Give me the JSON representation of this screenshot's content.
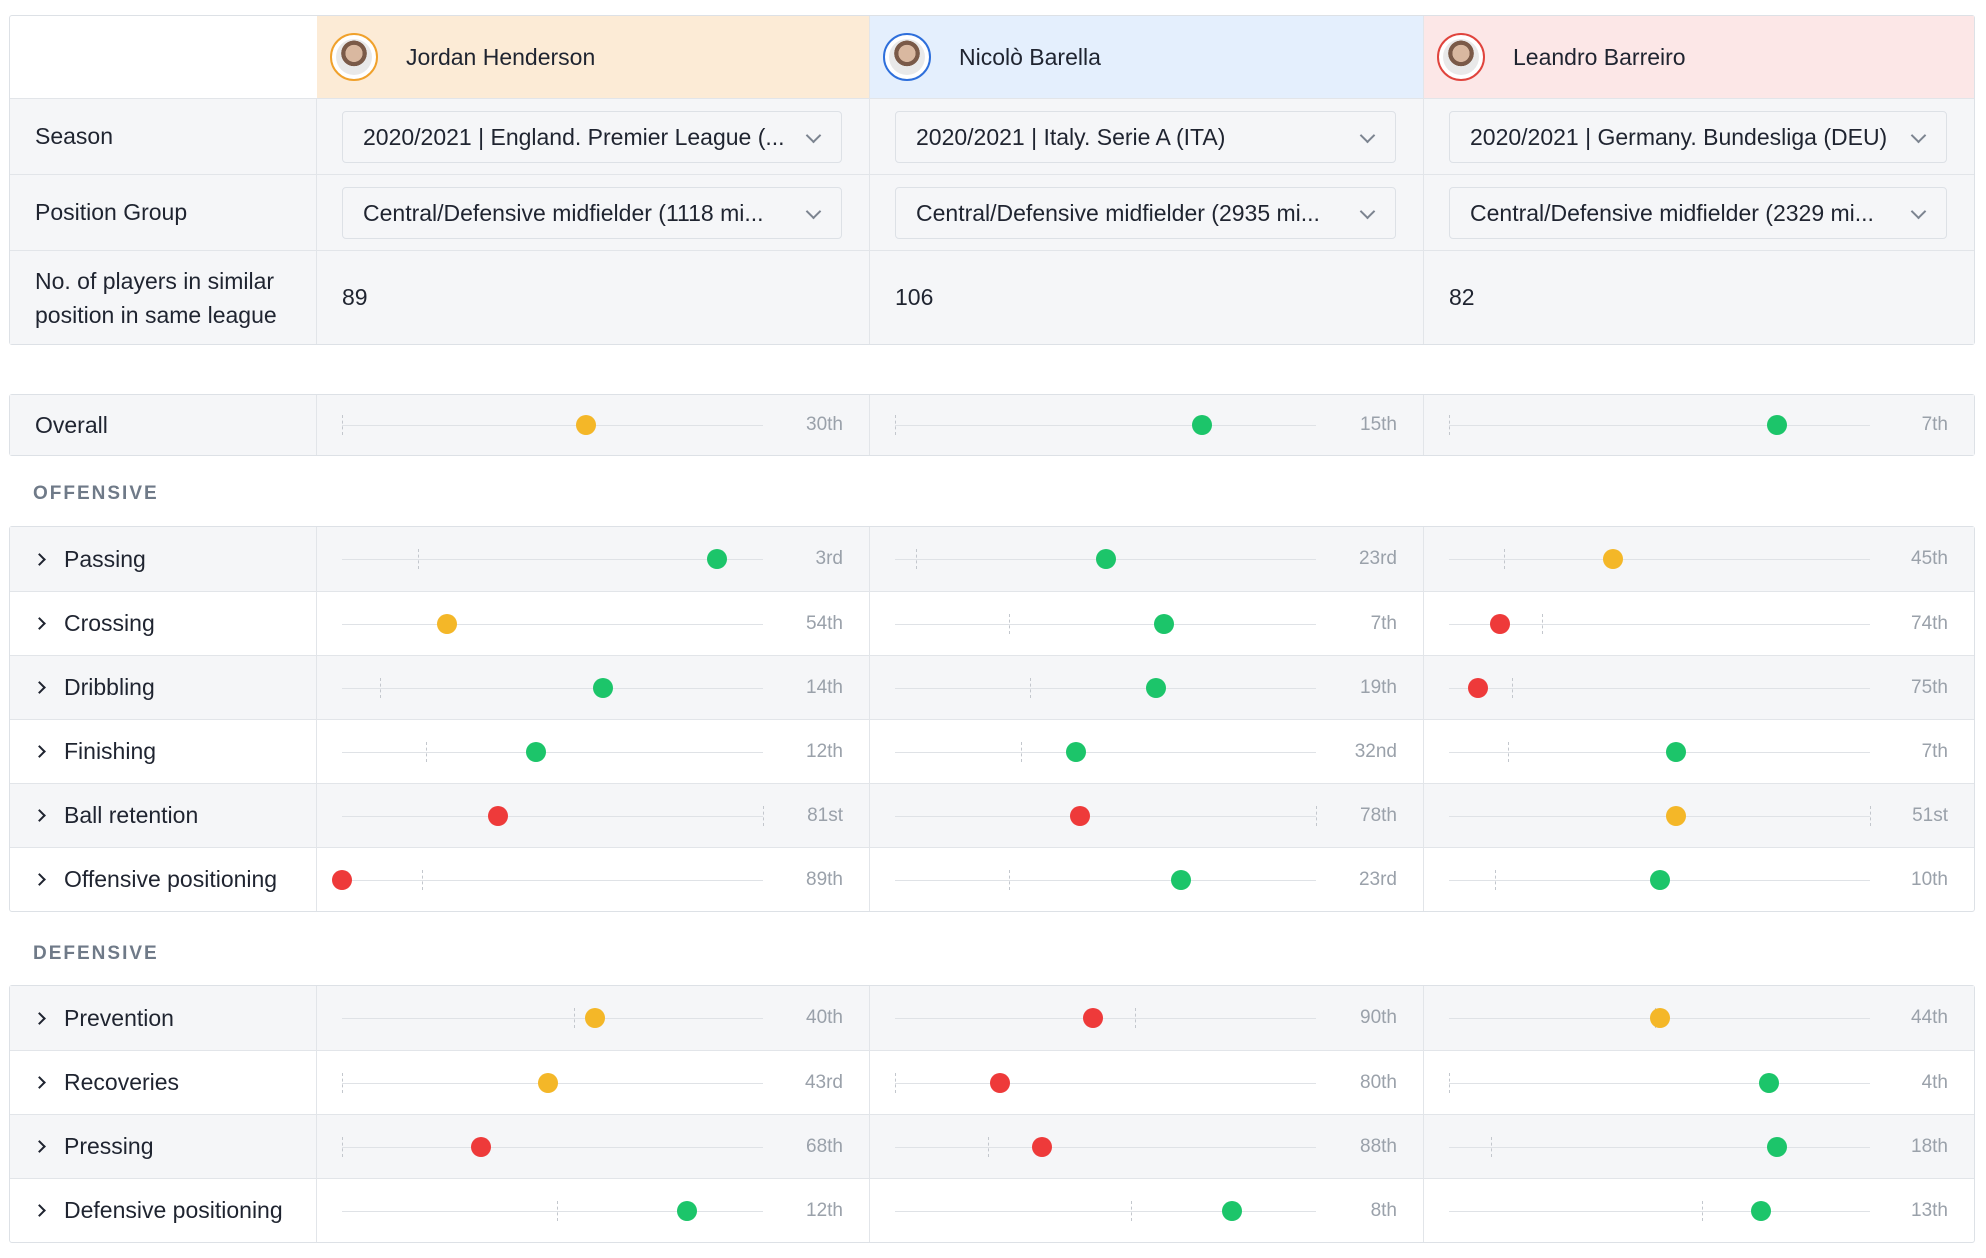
{
  "players": [
    {
      "name": "Jordan Henderson",
      "season": "2020/2021 | England. Premier League (...",
      "position_group": "Central/Defensive midfielder (1118 mi...",
      "similar_players": "89"
    },
    {
      "name": "Nicolò Barella",
      "season": "2020/2021 | Italy. Serie A (ITA)",
      "position_group": "Central/Defensive midfielder (2935 mi...",
      "similar_players": "106"
    },
    {
      "name": "Leandro Barreiro",
      "season": "2020/2021 | Germany. Bundesliga (DEU)",
      "position_group": "Central/Defensive midfielder (2329 mi...",
      "similar_players": "82"
    }
  ],
  "labels": {
    "season": "Season",
    "position_group": "Position Group",
    "similar_line1": "No. of players in similar",
    "similar_line2": "position in same league",
    "offensive": "OFFENSIVE",
    "defensive": "DEFENSIVE"
  },
  "colors": {
    "green": "#1cc56a",
    "yellow": "#f4b728",
    "red": "#ee3a3a"
  },
  "overall": {
    "label": "Overall",
    "values": [
      {
        "rank": "30th",
        "level": 0.58,
        "avg": 0.0,
        "color": "yellow"
      },
      {
        "rank": "15th",
        "level": 0.73,
        "avg": 0.0,
        "color": "green"
      },
      {
        "rank": "7th",
        "level": 0.78,
        "avg": 0.0,
        "color": "green"
      }
    ]
  },
  "offensive": [
    {
      "label": "Passing",
      "values": [
        {
          "rank": "3rd",
          "level": 0.89,
          "avg": 0.18,
          "color": "green"
        },
        {
          "rank": "23rd",
          "level": 0.5,
          "avg": 0.05,
          "color": "green"
        },
        {
          "rank": "45th",
          "level": 0.39,
          "avg": 0.13,
          "color": "yellow"
        }
      ]
    },
    {
      "label": "Crossing",
      "values": [
        {
          "rank": "54th",
          "level": 0.25,
          "avg": null,
          "color": "yellow"
        },
        {
          "rank": "7th",
          "level": 0.64,
          "avg": 0.27,
          "color": "green"
        },
        {
          "rank": "74th",
          "level": 0.12,
          "avg": 0.22,
          "color": "red"
        }
      ]
    },
    {
      "label": "Dribbling",
      "values": [
        {
          "rank": "14th",
          "level": 0.62,
          "avg": 0.09,
          "color": "green"
        },
        {
          "rank": "19th",
          "level": 0.62,
          "avg": 0.32,
          "color": "green"
        },
        {
          "rank": "75th",
          "level": 0.07,
          "avg": 0.15,
          "color": "red"
        }
      ]
    },
    {
      "label": "Finishing",
      "values": [
        {
          "rank": "12th",
          "level": 0.46,
          "avg": 0.2,
          "color": "green"
        },
        {
          "rank": "32nd",
          "level": 0.43,
          "avg": 0.3,
          "color": "green"
        },
        {
          "rank": "7th",
          "level": 0.54,
          "avg": 0.14,
          "color": "green"
        }
      ]
    },
    {
      "label": "Ball retention",
      "values": [
        {
          "rank": "81st",
          "level": 0.37,
          "avg": 1.0,
          "color": "red"
        },
        {
          "rank": "78th",
          "level": 0.44,
          "avg": 1.0,
          "color": "red"
        },
        {
          "rank": "51st",
          "level": 0.54,
          "avg": 1.0,
          "color": "yellow"
        }
      ]
    },
    {
      "label": "Offensive positioning",
      "values": [
        {
          "rank": "89th",
          "level": 0.0,
          "avg": 0.19,
          "color": "red"
        },
        {
          "rank": "23rd",
          "level": 0.68,
          "avg": 0.27,
          "color": "green"
        },
        {
          "rank": "10th",
          "level": 0.5,
          "avg": 0.11,
          "color": "green"
        }
      ]
    }
  ],
  "defensive": [
    {
      "label": "Prevention",
      "values": [
        {
          "rank": "40th",
          "level": 0.6,
          "avg": 0.55,
          "color": "yellow"
        },
        {
          "rank": "90th",
          "level": 0.47,
          "avg": 0.57,
          "color": "red"
        },
        {
          "rank": "44th",
          "level": 0.5,
          "avg": 0.49,
          "color": "yellow"
        }
      ]
    },
    {
      "label": "Recoveries",
      "values": [
        {
          "rank": "43rd",
          "level": 0.49,
          "avg": 0.0,
          "color": "yellow"
        },
        {
          "rank": "80th",
          "level": 0.25,
          "avg": 0.0,
          "color": "red"
        },
        {
          "rank": "4th",
          "level": 0.76,
          "avg": 0.0,
          "color": "green"
        }
      ]
    },
    {
      "label": "Pressing",
      "values": [
        {
          "rank": "68th",
          "level": 0.33,
          "avg": 0.0,
          "color": "red"
        },
        {
          "rank": "88th",
          "level": 0.35,
          "avg": 0.22,
          "color": "red"
        },
        {
          "rank": "18th",
          "level": 0.78,
          "avg": 0.1,
          "color": "green"
        }
      ]
    },
    {
      "label": "Defensive positioning",
      "values": [
        {
          "rank": "12th",
          "level": 0.82,
          "avg": 0.51,
          "color": "green"
        },
        {
          "rank": "8th",
          "level": 0.8,
          "avg": 0.56,
          "color": "green"
        },
        {
          "rank": "13th",
          "level": 0.74,
          "avg": 0.6,
          "color": "green"
        }
      ]
    }
  ]
}
